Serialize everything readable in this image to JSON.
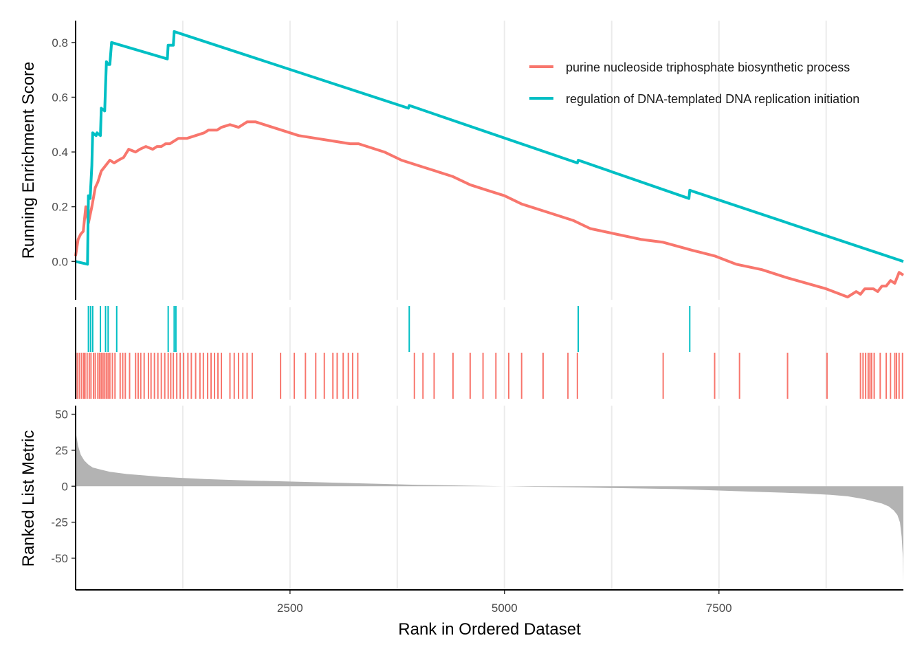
{
  "chart_data": [
    {
      "type": "line",
      "ylabel": "Running Enrichment Score",
      "xlim": [
        1,
        9650
      ],
      "ylim": [
        -0.14,
        0.88
      ],
      "y_ticks": [
        "0.0",
        "0.2",
        "0.4",
        "0.6",
        "0.8"
      ],
      "y_tick_values": [
        0.0,
        0.2,
        0.4,
        0.6,
        0.8
      ],
      "grid_x": [
        1250,
        2500,
        3750,
        5000,
        6250,
        7500,
        8750
      ],
      "legend_position": "top-right",
      "series": [
        {
          "name": "purine nucleoside triphosphate biosynthetic process",
          "color": "#F8766D",
          "x": [
            0,
            30,
            60,
            90,
            120,
            150,
            190,
            230,
            260,
            300,
            350,
            400,
            450,
            500,
            560,
            620,
            700,
            750,
            820,
            900,
            950,
            1000,
            1050,
            1100,
            1150,
            1200,
            1250,
            1300,
            1400,
            1500,
            1550,
            1650,
            1700,
            1800,
            1900,
            2000,
            2100,
            2200,
            2400,
            2600,
            2800,
            3000,
            3200,
            3300,
            3400,
            3600,
            3800,
            4000,
            4200,
            4400,
            4600,
            4800,
            5000,
            5200,
            5500,
            5800,
            6000,
            6300,
            6600,
            6850,
            7200,
            7450,
            7700,
            8000,
            8300,
            8750,
            9000,
            9100,
            9150,
            9200,
            9250,
            9300,
            9350,
            9400,
            9450,
            9500,
            9550,
            9600,
            9650
          ],
          "y": [
            0.02,
            0.08,
            0.1,
            0.11,
            0.2,
            0.14,
            0.2,
            0.27,
            0.29,
            0.33,
            0.35,
            0.37,
            0.36,
            0.37,
            0.38,
            0.41,
            0.4,
            0.41,
            0.42,
            0.41,
            0.42,
            0.42,
            0.43,
            0.43,
            0.44,
            0.45,
            0.45,
            0.45,
            0.46,
            0.47,
            0.48,
            0.48,
            0.49,
            0.5,
            0.49,
            0.51,
            0.51,
            0.5,
            0.48,
            0.46,
            0.45,
            0.44,
            0.43,
            0.43,
            0.42,
            0.4,
            0.37,
            0.35,
            0.33,
            0.31,
            0.28,
            0.26,
            0.24,
            0.21,
            0.18,
            0.15,
            0.12,
            0.1,
            0.08,
            0.07,
            0.04,
            0.02,
            -0.01,
            -0.03,
            -0.06,
            -0.1,
            -0.13,
            -0.11,
            -0.12,
            -0.1,
            -0.1,
            -0.1,
            -0.11,
            -0.09,
            -0.09,
            -0.07,
            -0.08,
            -0.04,
            -0.05
          ]
        },
        {
          "name": "regulation of DNA-templated DNA replication initiation",
          "color": "#00BFC4",
          "x": [
            0,
            140,
            150,
            170,
            190,
            200,
            240,
            250,
            290,
            300,
            340,
            350,
            360,
            380,
            400,
            420,
            1070,
            1080,
            1140,
            1150,
            3880,
            3890,
            5850,
            5860,
            7150,
            7160,
            9650
          ],
          "y": [
            0.0,
            -0.01,
            0.24,
            0.23,
            0.35,
            0.47,
            0.46,
            0.47,
            0.46,
            0.56,
            0.55,
            0.64,
            0.73,
            0.72,
            0.72,
            0.8,
            0.74,
            0.79,
            0.79,
            0.84,
            0.56,
            0.57,
            0.36,
            0.37,
            0.23,
            0.26,
            0.0
          ]
        }
      ]
    },
    {
      "type": "scatter",
      "description_free": true,
      "series": [
        {
          "name": "regulation of DNA-templated DNA replication initiation",
          "color": "#00BFC4",
          "x": [
            150,
            175,
            200,
            290,
            350,
            380,
            480,
            1080,
            1150,
            1170,
            3890,
            5860,
            7160
          ]
        },
        {
          "name": "purine nucleoside triphosphate biosynthetic process",
          "color": "#F8766D",
          "x": [
            20,
            45,
            70,
            95,
            110,
            135,
            160,
            180,
            210,
            230,
            260,
            280,
            300,
            320,
            340,
            360,
            380,
            400,
            430,
            460,
            520,
            550,
            580,
            630,
            700,
            730,
            760,
            800,
            850,
            880,
            920,
            960,
            1000,
            1040,
            1080,
            1110,
            1140,
            1180,
            1220,
            1260,
            1310,
            1350,
            1400,
            1450,
            1490,
            1540,
            1580,
            1620,
            1660,
            1700,
            1800,
            1850,
            1900,
            1950,
            2000,
            2060,
            2390,
            2550,
            2680,
            2800,
            2900,
            3000,
            3050,
            3120,
            3180,
            3230,
            3290,
            3950,
            4050,
            4180,
            4400,
            4600,
            4750,
            4900,
            5050,
            5200,
            5450,
            5740,
            5850,
            6850,
            7450,
            7740,
            8300,
            8760,
            9150,
            9180,
            9210,
            9240,
            9260,
            9280,
            9310,
            9380,
            9450,
            9500,
            9550,
            9570,
            9600,
            9640
          ]
        }
      ]
    },
    {
      "type": "bar",
      "ylabel": "Ranked List Metric",
      "xlabel": "Rank in Ordered Dataset",
      "xlim": [
        1,
        9650
      ],
      "ylim": [
        -72,
        56
      ],
      "x_ticks": [
        "2500",
        "5000",
        "7500"
      ],
      "x_tick_values": [
        2500,
        5000,
        7500
      ],
      "y_ticks": [
        "50",
        "25",
        "0",
        "-25",
        "-50"
      ],
      "y_tick_values": [
        50,
        25,
        0,
        -25,
        -50
      ],
      "fill": "#B3B3B3",
      "x": [
        0,
        10,
        30,
        60,
        100,
        150,
        200,
        300,
        400,
        600,
        800,
        1000,
        1500,
        2000,
        3000,
        4000,
        5000,
        6000,
        7000,
        7500,
        8000,
        8500,
        8800,
        9000,
        9200,
        9300,
        9400,
        9480,
        9540,
        9580,
        9610,
        9630,
        9645,
        9650
      ],
      "values": [
        42,
        35,
        28,
        22,
        18,
        15,
        13,
        11.5,
        10,
        8.5,
        7.5,
        6.5,
        5,
        4,
        2.5,
        1,
        0,
        -1,
        -2,
        -3,
        -4,
        -5,
        -6,
        -7,
        -9,
        -10.5,
        -12,
        -14,
        -17,
        -20,
        -25,
        -35,
        -50,
        -67
      ]
    }
  ]
}
